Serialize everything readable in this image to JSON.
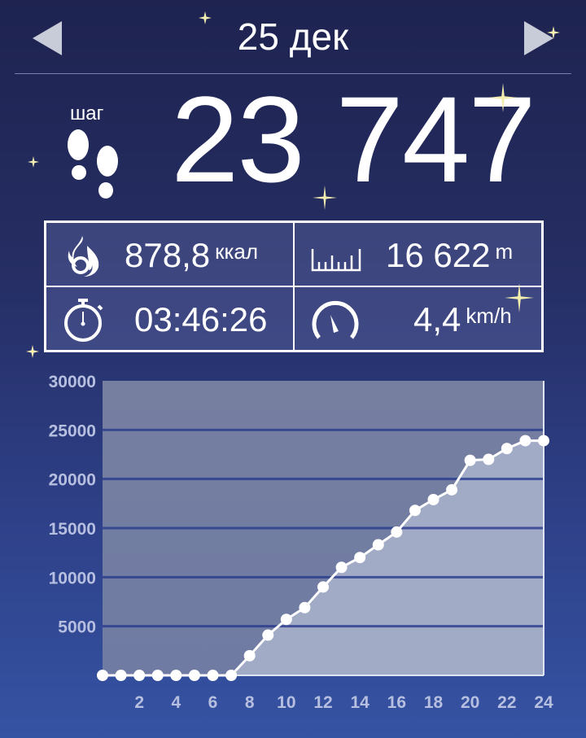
{
  "header": {
    "date": "25 дек",
    "prev_icon": "triangle-left-icon",
    "next_icon": "triangle-right-icon"
  },
  "steps": {
    "label": "шаг",
    "value": "23 747",
    "icon": "footprints-icon"
  },
  "stats": {
    "calories": {
      "value": "878,8",
      "unit": "ккал",
      "icon": "flame-icon"
    },
    "distance": {
      "value": "16 622",
      "unit": "m",
      "icon": "ruler-icon"
    },
    "duration": {
      "value": "03:46:26",
      "icon": "stopwatch-icon"
    },
    "speed": {
      "value": "4,4",
      "unit": "km/h",
      "icon": "speedometer-icon"
    }
  },
  "colors": {
    "plot_bg": "#6f7ba3",
    "fill": "#a2abc6",
    "grid": "#283a8c",
    "line": "#ffffff"
  },
  "chart_data": {
    "type": "area",
    "x": [
      0,
      1,
      2,
      3,
      4,
      5,
      6,
      7,
      8,
      9,
      10,
      11,
      12,
      13,
      14,
      15,
      16,
      17,
      18,
      19,
      20,
      21,
      22,
      23,
      24
    ],
    "values": [
      0,
      0,
      0,
      0,
      0,
      0,
      0,
      0,
      2000,
      4100,
      5700,
      6900,
      9000,
      11000,
      12000,
      13300,
      14600,
      16800,
      17900,
      18900,
      21900,
      22000,
      23100,
      23900,
      23900
    ],
    "ylim": [
      0,
      30000
    ],
    "xlim": [
      0,
      24
    ],
    "yticks": [
      5000,
      10000,
      15000,
      20000,
      25000,
      30000
    ],
    "xticks": [
      2,
      4,
      6,
      8,
      10,
      12,
      14,
      16,
      18,
      20,
      22,
      24
    ],
    "grid": true
  }
}
